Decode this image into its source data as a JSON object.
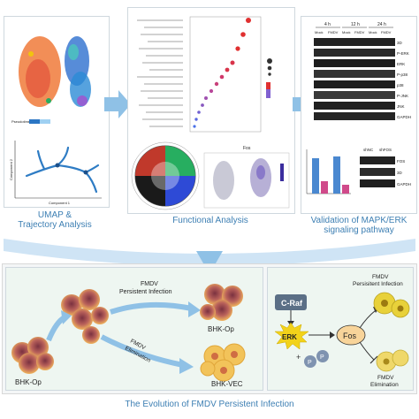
{
  "top": {
    "panels": [
      {
        "caption_line1": "UMAP &",
        "caption_line2": "Trajectory Analysis"
      },
      {
        "caption": "Functional Analysis"
      },
      {
        "caption_line1": "Validation of MAPK/ERK",
        "caption_line2": "signaling pathway"
      }
    ],
    "umap": {
      "legend_title": "Pseudotime",
      "axis_x": "Component 1",
      "axis_y": "Component 2"
    },
    "blot": {
      "timepoints": [
        "4 h",
        "12 h",
        "24 h"
      ],
      "groups": [
        "Mock",
        "FMDV"
      ],
      "bands": [
        "3D",
        "P-ERK",
        "ERK",
        "P-p38",
        "p38",
        "P-JNK",
        "JNK",
        "GAPDH"
      ],
      "small_groups": [
        "shNC",
        "shFOS"
      ],
      "small_bands": [
        "FOS",
        "3D",
        "GAPDH"
      ]
    },
    "functional": {
      "scatter_label": "Fos"
    }
  },
  "bottom": {
    "title": "The Evolution of FMDV Persistent Infection",
    "left": {
      "cell_start": "BHK-Op",
      "path_top_line1": "FMDV",
      "path_top_line2": "Persistent Infection",
      "path_bottom_line1": "FMDV",
      "path_bottom_line2": "Elimination",
      "cell_top": "BHK-Op",
      "cell_bottom": "BHK-VEC"
    },
    "right": {
      "craf": "C-Raf",
      "erk": "ERK",
      "fos": "Fos",
      "p": "P",
      "out_top_line1": "FMDV",
      "out_top_line2": "Persisitent Infection",
      "out_bottom_line1": "FMDV",
      "out_bottom_line2": "Elimination"
    }
  },
  "colors": {
    "accent": "#3d7fb3",
    "arrow": "#8fc1e6",
    "erk": "#f2d21a",
    "cell": "#e8a640"
  }
}
